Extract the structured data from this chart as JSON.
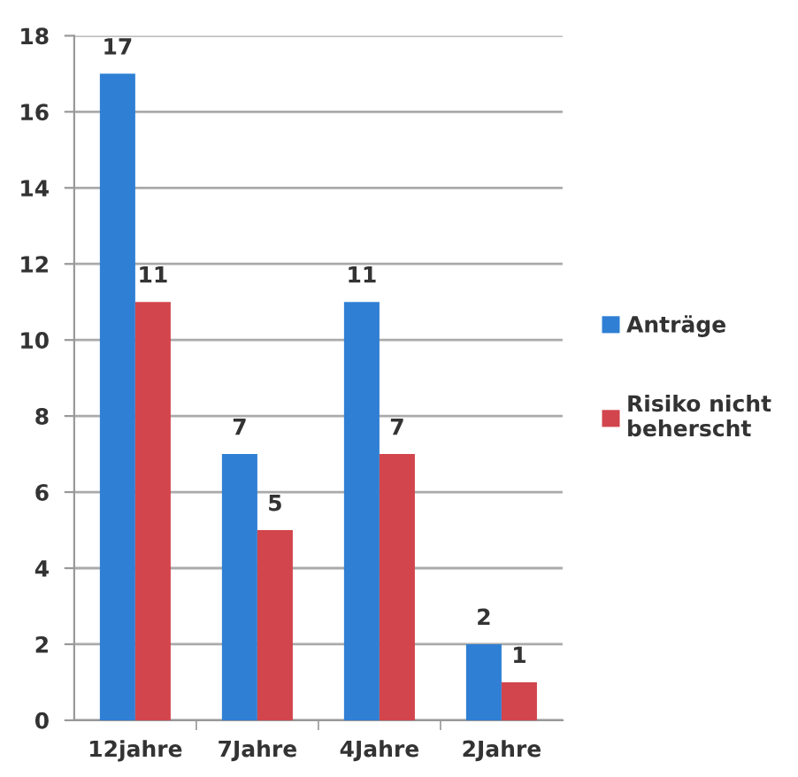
{
  "chart_data": {
    "type": "bar",
    "categories": [
      "12jahre",
      "7Jahre",
      "4Jahre",
      "2Jahre"
    ],
    "series": [
      {
        "name": "Anträge",
        "color": "#2f7fd4",
        "values": [
          17,
          7,
          11,
          2
        ]
      },
      {
        "name": "Risiko nicht\nbeherscht",
        "color": "#d2454c",
        "values": [
          11,
          5,
          7,
          1
        ]
      }
    ],
    "ylim": [
      0,
      18
    ],
    "yticks": [
      0,
      2,
      4,
      6,
      8,
      10,
      12,
      14,
      16,
      18
    ],
    "grid": "y",
    "legend": "right",
    "data_labels": true
  }
}
